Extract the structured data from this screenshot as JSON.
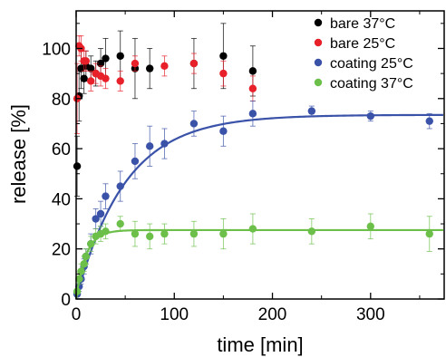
{
  "chart_data": {
    "type": "scatter",
    "title": "",
    "xlabel": "time [min]",
    "ylabel": "release [%]",
    "xlim": [
      0,
      375
    ],
    "ylim": [
      0,
      115
    ],
    "x_ticks": [
      0,
      100,
      200,
      300
    ],
    "y_ticks": [
      0,
      20,
      40,
      60,
      80,
      100
    ],
    "grid": false,
    "legend_position": "top-right",
    "series": [
      {
        "name": "bare 37°C",
        "color": "#000000",
        "points": [
          {
            "x": 1,
            "y": 53,
            "err": 12
          },
          {
            "x": 3,
            "y": 81,
            "err": 10
          },
          {
            "x": 5,
            "y": 92,
            "err": 8
          },
          {
            "x": 8,
            "y": 88,
            "err": 6
          },
          {
            "x": 10,
            "y": 93,
            "err": 6
          },
          {
            "x": 15,
            "y": 92,
            "err": 5
          },
          {
            "x": 20,
            "y": 90,
            "err": 5
          },
          {
            "x": 25,
            "y": 94,
            "err": 6
          },
          {
            "x": 30,
            "y": 96,
            "err": 8
          },
          {
            "x": 45,
            "y": 97,
            "err": 10
          },
          {
            "x": 60,
            "y": 92,
            "err": 12
          },
          {
            "x": 75,
            "y": 92,
            "err": 8
          },
          {
            "x": 120,
            "y": 94,
            "err": 10
          },
          {
            "x": 150,
            "y": 97,
            "err": 13
          },
          {
            "x": 180,
            "y": 91,
            "err": 10
          }
        ]
      },
      {
        "name": "bare 25°C",
        "color": "#e8202a",
        "points": [
          {
            "x": 1,
            "y": 80,
            "err": 14
          },
          {
            "x": 3,
            "y": 101,
            "err": 4
          },
          {
            "x": 5,
            "y": 100,
            "err": 5
          },
          {
            "x": 8,
            "y": 95,
            "err": 4
          },
          {
            "x": 10,
            "y": 95,
            "err": 4
          },
          {
            "x": 15,
            "y": 87,
            "err": 4
          },
          {
            "x": 20,
            "y": 90,
            "err": 4
          },
          {
            "x": 25,
            "y": 89,
            "err": 4
          },
          {
            "x": 30,
            "y": 88,
            "err": 4
          },
          {
            "x": 45,
            "y": 87,
            "err": 4
          },
          {
            "x": 60,
            "y": 94,
            "err": 3
          },
          {
            "x": 90,
            "y": 93,
            "err": 4
          },
          {
            "x": 120,
            "y": 94,
            "err": 4
          },
          {
            "x": 150,
            "y": 90,
            "err": 5
          },
          {
            "x": 180,
            "y": 84,
            "err": 5
          }
        ]
      },
      {
        "name": "coating 25°C",
        "color": "#3a52a8",
        "points": [
          {
            "x": 1,
            "y": 2,
            "err": 1
          },
          {
            "x": 3,
            "y": 5,
            "err": 2
          },
          {
            "x": 5,
            "y": 8,
            "err": 2
          },
          {
            "x": 8,
            "y": 13,
            "err": 3
          },
          {
            "x": 10,
            "y": 17,
            "err": 3
          },
          {
            "x": 15,
            "y": 22,
            "err": 4
          },
          {
            "x": 20,
            "y": 32,
            "err": 4
          },
          {
            "x": 25,
            "y": 34,
            "err": 5
          },
          {
            "x": 30,
            "y": 41,
            "err": 5
          },
          {
            "x": 45,
            "y": 45,
            "err": 6
          },
          {
            "x": 60,
            "y": 55,
            "err": 7
          },
          {
            "x": 75,
            "y": 61,
            "err": 8
          },
          {
            "x": 90,
            "y": 62,
            "err": 6
          },
          {
            "x": 120,
            "y": 70,
            "err": 5
          },
          {
            "x": 150,
            "y": 67,
            "err": 6
          },
          {
            "x": 180,
            "y": 74,
            "err": 5
          },
          {
            "x": 240,
            "y": 75,
            "err": 2
          },
          {
            "x": 300,
            "y": 73,
            "err": 2
          },
          {
            "x": 360,
            "y": 71,
            "err": 3
          }
        ],
        "fit": {
          "plateau": 73.5,
          "tau": 50
        }
      },
      {
        "name": "coating 37°C",
        "color": "#6cc04a",
        "points": [
          {
            "x": 1,
            "y": 3,
            "err": 1
          },
          {
            "x": 3,
            "y": 8,
            "err": 2
          },
          {
            "x": 5,
            "y": 11,
            "err": 3
          },
          {
            "x": 8,
            "y": 14,
            "err": 3
          },
          {
            "x": 10,
            "y": 17,
            "err": 3
          },
          {
            "x": 15,
            "y": 22,
            "err": 3
          },
          {
            "x": 20,
            "y": 25,
            "err": 3
          },
          {
            "x": 25,
            "y": 26,
            "err": 3
          },
          {
            "x": 30,
            "y": 27,
            "err": 3
          },
          {
            "x": 45,
            "y": 30,
            "err": 3
          },
          {
            "x": 60,
            "y": 26,
            "err": 5
          },
          {
            "x": 75,
            "y": 25,
            "err": 5
          },
          {
            "x": 90,
            "y": 26,
            "err": 4
          },
          {
            "x": 120,
            "y": 26,
            "err": 5
          },
          {
            "x": 150,
            "y": 26,
            "err": 6
          },
          {
            "x": 180,
            "y": 28,
            "err": 6
          },
          {
            "x": 240,
            "y": 27,
            "err": 5
          },
          {
            "x": 300,
            "y": 29,
            "err": 5
          },
          {
            "x": 360,
            "y": 26,
            "err": 7
          }
        ],
        "fit": {
          "plateau": 27.5,
          "tau": 10
        }
      }
    ]
  }
}
